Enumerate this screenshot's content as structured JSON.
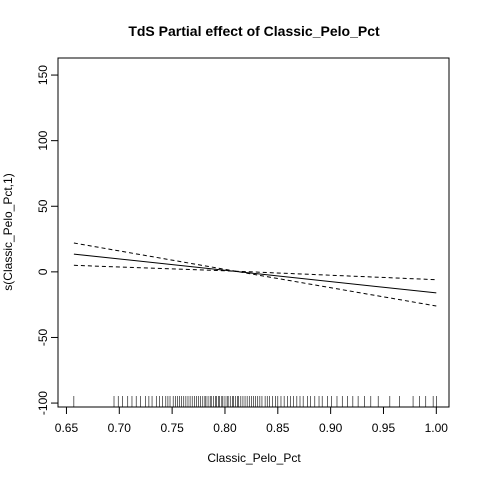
{
  "chart_data": {
    "type": "line",
    "title": "TdS Partial effect of Classic_Pelo_Pct",
    "xlabel": "Classic_Pelo_Pct",
    "ylabel": "s(Classic_Pelo_Pct,1)",
    "xlim": [
      0.642,
      1.012
    ],
    "ylim": [
      -103,
      163
    ],
    "x_ticks": [
      "0.65",
      "0.70",
      "0.75",
      "0.80",
      "0.85",
      "0.90",
      "0.95",
      "1.00"
    ],
    "x_tick_values": [
      0.65,
      0.7,
      0.75,
      0.8,
      0.85,
      0.9,
      0.95,
      1.0
    ],
    "y_ticks": [
      "-100",
      "-50",
      "0",
      "50",
      "100",
      "150"
    ],
    "y_tick_values": [
      -100,
      -50,
      0,
      50,
      100,
      150
    ],
    "series": [
      {
        "style": "solid",
        "x": [
          0.657,
          1.0
        ],
        "y": [
          13.5,
          -16.0
        ]
      },
      {
        "style": "dashed",
        "x": [
          0.657,
          0.81,
          1.0
        ],
        "y": [
          22.0,
          0.5,
          -26.0
        ]
      },
      {
        "style": "dashed",
        "x": [
          0.657,
          0.81,
          1.0
        ],
        "y": [
          5.0,
          0.5,
          -6.0
        ]
      }
    ],
    "rug": [
      0.657,
      0.695,
      0.699,
      0.703,
      0.708,
      0.712,
      0.716,
      0.72,
      0.725,
      0.728,
      0.731,
      0.735,
      0.738,
      0.741,
      0.744,
      0.746,
      0.748,
      0.751,
      0.753,
      0.755,
      0.757,
      0.759,
      0.761,
      0.763,
      0.765,
      0.767,
      0.769,
      0.771,
      0.773,
      0.775,
      0.777,
      0.779,
      0.781,
      0.782,
      0.784,
      0.786,
      0.787,
      0.789,
      0.791,
      0.792,
      0.794,
      0.795,
      0.797,
      0.798,
      0.8,
      0.802,
      0.803,
      0.805,
      0.807,
      0.808,
      0.81,
      0.812,
      0.813,
      0.815,
      0.817,
      0.819,
      0.821,
      0.823,
      0.825,
      0.827,
      0.829,
      0.831,
      0.833,
      0.835,
      0.838,
      0.84,
      0.842,
      0.845,
      0.848,
      0.85,
      0.853,
      0.856,
      0.859,
      0.862,
      0.865,
      0.868,
      0.871,
      0.874,
      0.878,
      0.881,
      0.885,
      0.889,
      0.892,
      0.897,
      0.901,
      0.906,
      0.911,
      0.916,
      0.921,
      0.926,
      0.932,
      0.938,
      0.945,
      0.956,
      0.965,
      0.978,
      0.984,
      0.99,
      0.997,
      1.0
    ],
    "grid": false,
    "legend": "none"
  }
}
